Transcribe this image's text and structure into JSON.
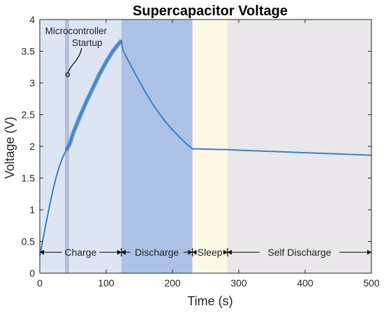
{
  "chart_data": {
    "type": "line",
    "title": "Supercapacitor Voltage",
    "xlabel": "Time (s)",
    "ylabel": "Voltage (V)",
    "xlim": [
      0,
      500
    ],
    "ylim": [
      0,
      4
    ],
    "x_ticks": [
      0,
      100,
      200,
      300,
      400,
      500
    ],
    "y_ticks": [
      0,
      0.5,
      1,
      1.5,
      2,
      2.5,
      3,
      3.5,
      4
    ],
    "grid": false,
    "phases": [
      {
        "label": "Charge",
        "start": 0,
        "end": 123,
        "color": "#dde5f5"
      },
      {
        "label": "Discharge",
        "start": 123,
        "end": 230,
        "color": "#adc1e7"
      },
      {
        "label": "Sleep",
        "start": 230,
        "end": 283,
        "color": "#fdf8e6"
      },
      {
        "label": "Self Discharge",
        "start": 283,
        "end": 500,
        "color": "#e9e7e9"
      }
    ],
    "startup_band": {
      "start": 38,
      "end": 44,
      "color": "#b3bfd6"
    },
    "annotation": {
      "text": [
        "Microcontroller",
        "Startup"
      ],
      "x": 42,
      "y": 3.13
    },
    "line_color": "#3d7fc4",
    "series": [
      {
        "x": [
          0,
          5,
          10,
          15,
          20,
          25,
          30,
          35,
          40,
          45,
          50,
          60,
          70,
          80,
          90,
          100,
          110,
          120,
          123,
          125,
          130,
          140,
          150,
          160,
          170,
          180,
          190,
          200,
          210,
          220,
          229,
          230,
          240,
          250,
          260,
          270,
          280,
          283,
          300,
          350,
          400,
          450,
          500
        ],
        "y": [
          0.28,
          0.55,
          0.82,
          1.08,
          1.32,
          1.53,
          1.7,
          1.84,
          1.94,
          2.04,
          2.2,
          2.46,
          2.7,
          2.92,
          3.14,
          3.33,
          3.5,
          3.63,
          3.67,
          3.52,
          3.42,
          3.22,
          3.03,
          2.84,
          2.67,
          2.52,
          2.38,
          2.26,
          2.15,
          2.05,
          1.97,
          1.96,
          1.96,
          1.955,
          1.955,
          1.95,
          1.95,
          1.95,
          1.94,
          1.92,
          1.9,
          1.88,
          1.86
        ]
      }
    ]
  }
}
